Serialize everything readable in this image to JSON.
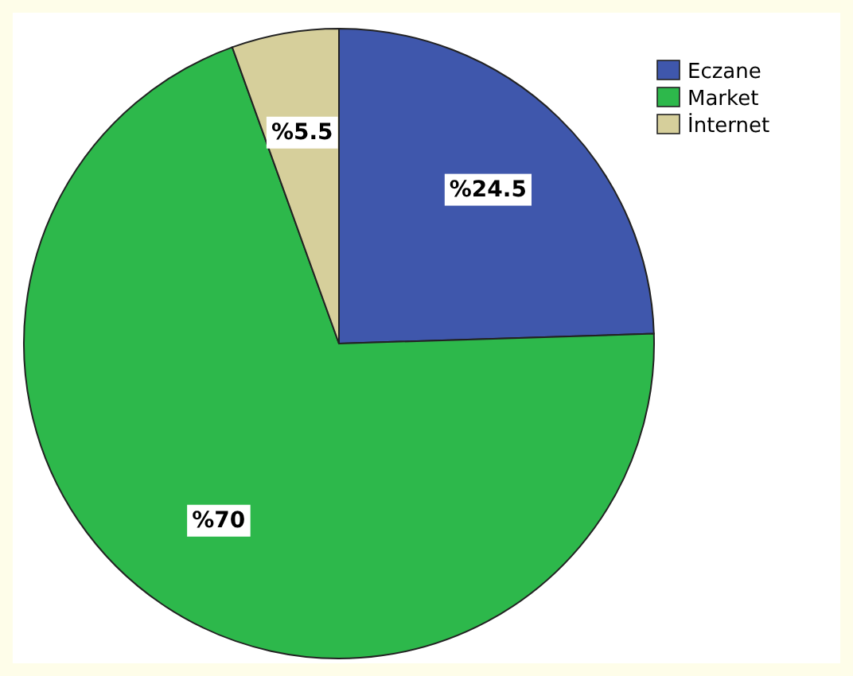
{
  "chart_data": {
    "type": "pie",
    "categories": [
      "Eczane",
      "Market",
      "İnternet"
    ],
    "values": [
      24.5,
      70,
      5.5
    ],
    "colors": [
      "#3f57ac",
      "#2db84b",
      "#d6cf9b"
    ],
    "value_labels": [
      "%24.5",
      "%70",
      "%5.5"
    ],
    "legend": "top right"
  }
}
